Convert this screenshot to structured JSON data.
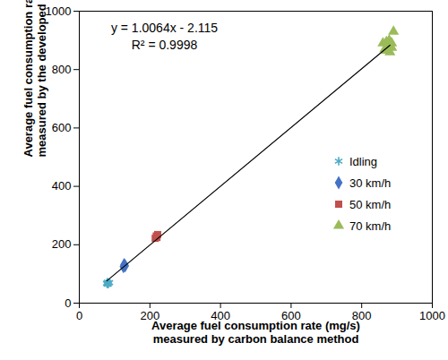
{
  "chart_data": {
    "type": "scatter",
    "xlabel": "Average fuel consumption rate (mg/s)\nmeasured by carbon balance method",
    "ylabel": "Average fuel consumption rate (mg/s)\nmeasured by the developed method",
    "annotations": [
      "y = 1.0064x - 2.115",
      "R² = 0.9998"
    ],
    "xlim": [
      0,
      1000
    ],
    "xticks": [
      0,
      200,
      400,
      600,
      800,
      1000
    ],
    "ylim": [
      0,
      1000
    ],
    "yticks": [
      0,
      200,
      400,
      600,
      800,
      1000
    ],
    "grid": false,
    "legend": "right",
    "series": [
      {
        "name": "Idling",
        "color": "#4bacc6",
        "marker": "asterisk",
        "x": [
          78,
          80,
          82,
          85,
          80
        ],
        "values": [
          68,
          72,
          66,
          70,
          65
        ]
      },
      {
        "name": "30 km/h",
        "color": "#4472c4",
        "marker": "diamond",
        "x": [
          125,
          128,
          130,
          127
        ],
        "values": [
          125,
          130,
          128,
          132
        ]
      },
      {
        "name": "50 km/h",
        "color": "#c0504d",
        "marker": "square",
        "x": [
          215,
          218,
          220,
          222
        ],
        "values": [
          222,
          230,
          225,
          235
        ]
      },
      {
        "name": "70 km/h",
        "color": "#9bbb59",
        "marker": "triangle",
        "x": [
          860,
          865,
          870,
          875,
          880,
          885,
          890,
          885,
          870,
          878
        ],
        "values": [
          890,
          870,
          895,
          880,
          860,
          875,
          930,
          890,
          865,
          900
        ]
      },
      {
        "type": "line",
        "color": "#000000",
        "line_style": "solid",
        "x": [
          78,
          880
        ],
        "values": [
          76.4,
          883.5
        ]
      }
    ]
  }
}
